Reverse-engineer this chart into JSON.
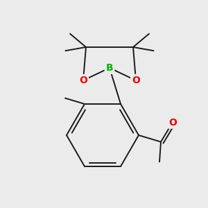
{
  "background_color": "#ebebeb",
  "bond_color": "#1a1a1a",
  "bond_width": 1.4,
  "atom_colors": {
    "B": "#00bb00",
    "O": "#ee0000"
  },
  "font_size_atom": 10
}
